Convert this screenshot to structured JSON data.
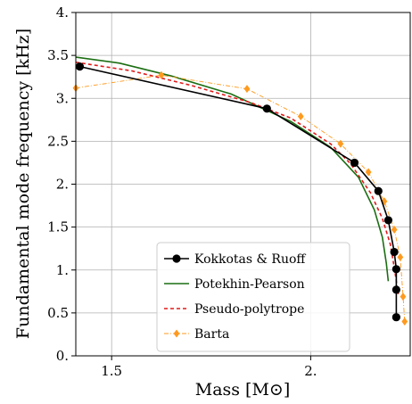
{
  "chart_data": {
    "type": "line",
    "xlabel": "Mass [M⊙]",
    "ylabel": "Fundamental mode frequency [kHz]",
    "xlim": [
      1.41,
      2.25
    ],
    "ylim": [
      0,
      4
    ],
    "xticks": [
      1.5,
      2.0
    ],
    "xtick_labels": [
      "1.5",
      "2."
    ],
    "yticks": [
      0,
      0.5,
      1,
      1.5,
      2,
      2.5,
      3,
      3.5,
      4
    ],
    "ytick_labels": [
      "0.",
      "0.5",
      "1.",
      "1.5",
      "2.",
      "2.5",
      "3.",
      "3.5",
      "4."
    ],
    "grid": true,
    "legend_position": "lower-center",
    "series": [
      {
        "name": "Kokkotas & Ruoff",
        "color": "#000000",
        "style": "solid-with-circles",
        "x": [
          1.42,
          1.89,
          2.11,
          2.17,
          2.195,
          2.21,
          2.215,
          2.215,
          2.215
        ],
        "y": [
          3.37,
          2.88,
          2.25,
          1.92,
          1.58,
          1.21,
          1.01,
          0.77,
          0.45
        ]
      },
      {
        "name": "Potekhin-Pearson",
        "color": "#1b6e12",
        "style": "solid",
        "x": [
          1.41,
          1.52,
          1.65,
          1.8,
          1.95,
          2.05,
          2.12,
          2.16,
          2.18,
          2.19,
          2.195
        ],
        "y": [
          3.48,
          3.41,
          3.26,
          3.05,
          2.73,
          2.43,
          2.08,
          1.7,
          1.38,
          1.08,
          0.87
        ]
      },
      {
        "name": "Pseudo-polytrope",
        "color": "#e01a1a",
        "style": "dashed",
        "x": [
          1.41,
          1.55,
          1.7,
          1.85,
          1.95,
          2.05,
          2.1,
          2.15,
          2.18,
          2.2,
          2.21,
          2.22
        ],
        "y": [
          3.42,
          3.32,
          3.15,
          2.95,
          2.77,
          2.47,
          2.24,
          1.9,
          1.6,
          1.3,
          1.03,
          0.72
        ]
      },
      {
        "name": "Barta",
        "color": "#ff9a1e",
        "style": "dashdot-with-diamonds",
        "x": [
          1.41,
          1.625,
          1.84,
          1.975,
          2.075,
          2.145,
          2.185,
          2.21,
          2.225,
          2.232,
          2.236
        ],
        "y": [
          3.12,
          3.27,
          3.11,
          2.79,
          2.47,
          2.14,
          1.8,
          1.47,
          1.15,
          0.69,
          0.4
        ]
      }
    ]
  }
}
